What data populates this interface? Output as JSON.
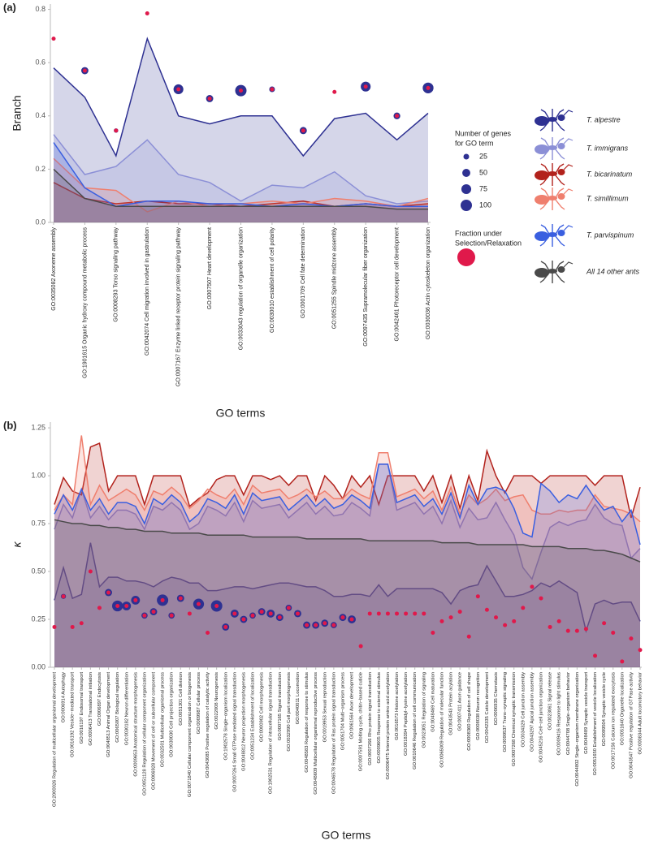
{
  "chart_data": [
    {
      "type": "line",
      "panel_label": "(a)",
      "ylabel": "Branch",
      "xlabel": "GO terms",
      "categories": [
        "GO:0035082 Axoneme assembly",
        "GO:1901615 Organic hydroxy compound metabolic process",
        "GO:0008293 Torso signaling pathway",
        "GO:0042074 Cell migration involved in gastrulation",
        "GO:0007167 Enzyme linked receptor protein signaling pathway",
        "GO:0007507 Heart development",
        "GO:0033043 regulation of organelle organization",
        "GO:0030010 establishment of cell polarity",
        "GO:0001709 Cell fate determination",
        "GO:0051255 Spindle midzone assembly",
        "GO:0097435 Supramolecular fiber organization",
        "GO:0042461 Photoreceptor cell development",
        "GO:0030036 Actin cytoskeleton organization"
      ],
      "ylim": [
        0,
        0.82
      ],
      "yticks": [
        {
          "value": 0,
          "label": "0.0"
        },
        0.2,
        0.4,
        0.6,
        0.8
      ],
      "series": [
        {
          "name": "T. alpestre",
          "color": "#2e3192",
          "values": [
            0.58,
            0.47,
            0.25,
            0.69,
            0.4,
            0.37,
            0.4,
            0.4,
            0.25,
            0.39,
            0.41,
            0.31,
            0.41
          ]
        },
        {
          "name": "T. immigrans",
          "color": "#8b8fd6",
          "values": [
            0.33,
            0.18,
            0.21,
            0.31,
            0.18,
            0.15,
            0.08,
            0.14,
            0.13,
            0.19,
            0.1,
            0.07,
            0.08
          ]
        },
        {
          "name": "T. bicarinatum",
          "color": "#b2221c",
          "values": [
            0.15,
            0.09,
            0.07,
            0.08,
            0.07,
            0.07,
            0.06,
            0.07,
            0.08,
            0.06,
            0.07,
            0.06,
            0.07
          ]
        },
        {
          "name": "T. simillimum",
          "color": "#ef7f6e",
          "values": [
            0.24,
            0.13,
            0.12,
            0.04,
            0.08,
            0.06,
            0.07,
            0.08,
            0.07,
            0.09,
            0.08,
            0.06,
            0.09
          ]
        },
        {
          "name": "T. parvispinum",
          "color": "#3a5fe0",
          "values": [
            0.3,
            0.13,
            0.06,
            0.08,
            0.08,
            0.07,
            0.07,
            0.06,
            0.07,
            0.06,
            0.07,
            0.06,
            0.06
          ]
        },
        {
          "name": "All 14 other ants",
          "color": "#4a4a4a",
          "values": [
            0.2,
            0.09,
            0.06,
            0.06,
            0.06,
            0.06,
            0.06,
            0.06,
            0.06,
            0.06,
            0.06,
            0.05,
            0.05
          ]
        }
      ],
      "dots": {
        "y": [
          0.69,
          0.57,
          0.345,
          0.785,
          0.5,
          0.465,
          0.495,
          0.5,
          0.345,
          0.49,
          0.51,
          0.4,
          0.505
        ],
        "genes": [
          10,
          40,
          15,
          10,
          75,
          40,
          100,
          25,
          40,
          5,
          75,
          35,
          90
        ],
        "color": "#2e3192",
        "center_color": "#e0194b"
      },
      "size_legend": {
        "title": [
          "Number of genes",
          "for GO term"
        ],
        "values": [
          25,
          50,
          75,
          100
        ]
      },
      "fraction_legend": {
        "title": [
          "Fraction under",
          "Selection/Relaxation"
        ]
      }
    },
    {
      "type": "line",
      "panel_label": "(b)",
      "ylabel": "κ",
      "xlabel": "GO terms",
      "categories": [
        "GO:2000026 Regulation of multicellular organismal development",
        "GO:0006914 Autophagy",
        "GO:0016192 Vesicle−mediated transport",
        "GO:0016197 Endosomal transport",
        "GO:0006413 Translational initiation",
        "GO:0006897 Endocytosis",
        "GO:0048513 Animal Organ development",
        "GO:0065007 Biological regulation",
        "GO:0030182 Neuron differentiation",
        "GO:0009653 Anatomical structure morphogenesis",
        "GO:0051128 Regulation of cellular component organization",
        "GO:0006928 Movement of cell or subcellular component",
        "GO:0032501 Multicellular organismal process",
        "GO:0030030 Cell projection organization",
        "GO:0051301 Cell division",
        "GO:0071840 Cellular component organization or biogenesis",
        "GO:0009987 Cellular process",
        "GO:0043085 Positive regulation of catalytic activity",
        "GO:0022008 Neurogenesis",
        "GO:1902578 Single−organism localization",
        "GO:0007264 Small GTPase mediated signal transduction",
        "GO:0048812 Neuron projection morphogenesis",
        "GO:0051234 Establishment of localization",
        "GO:0000902 Cell morphogenesis",
        "GO:1902531 Regulation of intracellular signal transduction",
        "GO:0007165 Signal transduction",
        "GO:0032990 Cell part morphogenesis",
        "GO:0040011 Locomotion",
        "GO:0048583 Regulation of response to stimulus",
        "GO:0048609 Multicellular organismal reproductive process",
        "GO:0019953 Sexual reproduction",
        "GO:0046578 Regulation of Ras protein signal transduction",
        "GO:0051704 Multi−organism process",
        "GO:0061564 Axon development",
        "GO:0007591 Molting cycle, chitin−based cuticle",
        "GO:0007266 Rho protein signal transduction",
        "GO:0009605 Response to external stimulus",
        "GO:0006475 Internal protein amino acid acetylation",
        "GO:0016573 Histone acetylation",
        "GO:0018394 Peptidyl−lysine acetylation",
        "GO:0010646 Regulation of cell communication",
        "GO:0023051 Regulation of signaling",
        "GO:0048469 Cell maturation",
        "GO:0065009 Regulation of molecular function",
        "GO:0043543 Protein acylation",
        "GO:0007411 Axon guidance",
        "GO:0008360 Regulation of cell shape",
        "GO:0008038 Neuron recognition",
        "GO:0042335 Cuticle development",
        "GO:0006935 Chemotaxis",
        "GO:0099537 Trans−synaptic signaling",
        "GO:0007268 Chemical synaptic transmission",
        "GO:0034329 Cell junction assembly",
        "GO:0043297 Apical junction assembly",
        "GO:0045216 Cell−cell junction organization",
        "GO:0023061 Signal release",
        "GO:0009416 Response to light stimulus",
        "GO:0044708 Single−organism behavior",
        "GO:0044802 Single−organism membrane organization",
        "GO:0048489 Synaptic vesicle transport",
        "GO:0051650 Establishment of vesicle localization",
        "GO:0099504 Synaptic vesicle cycle",
        "GO:0017156 Calcium ion regulated exocytosis",
        "GO:0051640 Organelle localization",
        "GO:0043547 Positive regulation of GTPase activity",
        "GO:0008344 Adult locomotory behavior"
      ],
      "ylim": [
        0,
        1.28
      ],
      "yticks": [
        {
          "value": 0,
          "label": "0.00"
        },
        0.25,
        {
          "value": 0.5,
          "label": "0.50"
        },
        0.75,
        {
          "value": 1,
          "label": "1.00"
        },
        1.25
      ],
      "series": [
        {
          "color": "#2e3192",
          "values": [
            0.35,
            0.52,
            0.36,
            0.38,
            0.65,
            0.42,
            0.47,
            0.47,
            0.45,
            0.45,
            0.44,
            0.42,
            0.45,
            0.47,
            0.46,
            0.44,
            0.44,
            0.4,
            0.4,
            0.41,
            0.42,
            0.42,
            0.41,
            0.42,
            0.43,
            0.44,
            0.44,
            0.43,
            0.42,
            0.42,
            0.4,
            0.37,
            0.37,
            0.38,
            0.38,
            0.37,
            0.43,
            0.37,
            0.41,
            0.41,
            0.41,
            0.41,
            0.41,
            0.39,
            0.33,
            0.4,
            0.42,
            0.43,
            0.53,
            0.45,
            0.37,
            0.37,
            0.38,
            0.4,
            0.44,
            0.42,
            0.45,
            0.42,
            0.39,
            0.19,
            0.33,
            0.35,
            0.33,
            0.34,
            0.34,
            0.24
          ]
        },
        {
          "color": "#8b8fd6",
          "values": [
            0.72,
            0.85,
            0.78,
            0.93,
            0.78,
            0.84,
            0.77,
            0.82,
            0.82,
            0.8,
            0.72,
            0.84,
            0.82,
            0.86,
            0.82,
            0.72,
            0.75,
            0.84,
            0.82,
            0.79,
            0.86,
            0.76,
            0.87,
            0.83,
            0.84,
            0.85,
            0.78,
            0.82,
            0.86,
            0.8,
            0.84,
            0.79,
            0.8,
            0.86,
            0.83,
            0.79,
            1.06,
            1.06,
            0.82,
            0.84,
            0.86,
            0.8,
            0.84,
            0.75,
            0.87,
            0.73,
            0.83,
            0.77,
            0.78,
            0.86,
            0.77,
            0.69,
            0.52,
            0.46,
            0.6,
            0.73,
            0.76,
            0.74,
            0.76,
            0.77,
            0.85,
            0.78,
            0.75,
            0.74,
            0.57,
            0.62
          ]
        },
        {
          "color": "#b2221c",
          "values": [
            0.85,
            0.99,
            0.92,
            0.9,
            1.15,
            1.17,
            0.92,
            1.0,
            1.0,
            1.0,
            0.85,
            1.0,
            1.0,
            1.0,
            1.0,
            0.84,
            0.88,
            0.91,
            0.98,
            1.0,
            1.0,
            0.9,
            1.0,
            1.0,
            0.98,
            1.0,
            0.95,
            1.0,
            1.0,
            0.87,
            1.0,
            0.95,
            0.88,
            1.0,
            0.94,
            1.0,
            0.85,
            1.0,
            1.0,
            1.0,
            1.0,
            0.92,
            1.0,
            0.86,
            1.0,
            0.83,
            1.0,
            0.87,
            1.13,
            1.0,
            0.91,
            1.0,
            1.0,
            1.0,
            0.96,
            1.0,
            1.0,
            1.0,
            1.0,
            1.0,
            0.95,
            1.0,
            1.0,
            1.0,
            0.78,
            0.94
          ]
        },
        {
          "color": "#ef7f6e",
          "values": [
            0.82,
            0.9,
            0.85,
            1.21,
            0.85,
            0.95,
            0.87,
            0.9,
            0.93,
            0.9,
            0.82,
            0.92,
            0.9,
            0.94,
            0.9,
            0.83,
            0.87,
            0.93,
            0.9,
            0.88,
            0.93,
            0.85,
            0.95,
            0.91,
            0.92,
            0.93,
            0.88,
            0.9,
            0.93,
            0.89,
            0.92,
            0.88,
            0.88,
            0.93,
            0.9,
            0.88,
            1.12,
            1.12,
            0.89,
            0.91,
            0.93,
            0.88,
            0.92,
            0.82,
            0.94,
            0.8,
            0.9,
            0.85,
            0.88,
            0.93,
            0.87,
            0.89,
            0.9,
            0.82,
            0.8,
            0.8,
            0.82,
            0.81,
            0.82,
            0.82,
            0.9,
            0.84,
            0.83,
            0.82,
            0.8,
            0.76
          ]
        },
        {
          "color": "#3a5fe0",
          "values": [
            0.8,
            0.9,
            0.82,
            0.93,
            0.82,
            0.88,
            0.8,
            0.86,
            0.86,
            0.84,
            0.75,
            0.88,
            0.85,
            0.9,
            0.86,
            0.76,
            0.8,
            0.88,
            0.86,
            0.83,
            0.9,
            0.8,
            0.91,
            0.87,
            0.88,
            0.89,
            0.82,
            0.86,
            0.9,
            0.84,
            0.88,
            0.83,
            0.85,
            0.9,
            0.87,
            0.83,
            1.06,
            1.06,
            0.86,
            0.88,
            0.9,
            0.84,
            0.88,
            0.8,
            0.91,
            0.78,
            0.95,
            0.85,
            0.93,
            0.94,
            0.92,
            0.83,
            0.7,
            0.68,
            0.96,
            0.92,
            0.86,
            0.9,
            0.88,
            0.95,
            0.88,
            0.82,
            0.84,
            0.76,
            0.82,
            0.64
          ]
        },
        {
          "color": "#4a4a4a",
          "values": [
            0.77,
            0.76,
            0.75,
            0.75,
            0.74,
            0.74,
            0.73,
            0.73,
            0.72,
            0.72,
            0.71,
            0.71,
            0.71,
            0.7,
            0.7,
            0.7,
            0.7,
            0.69,
            0.69,
            0.69,
            0.69,
            0.69,
            0.68,
            0.68,
            0.68,
            0.68,
            0.68,
            0.68,
            0.67,
            0.67,
            0.67,
            0.67,
            0.67,
            0.67,
            0.67,
            0.66,
            0.66,
            0.66,
            0.66,
            0.66,
            0.66,
            0.66,
            0.66,
            0.65,
            0.65,
            0.65,
            0.65,
            0.64,
            0.64,
            0.64,
            0.64,
            0.64,
            0.64,
            0.63,
            0.63,
            0.63,
            0.63,
            0.62,
            0.62,
            0.62,
            0.61,
            0.61,
            0.6,
            0.59,
            0.57,
            0.55
          ]
        }
      ],
      "dots": {
        "y": [
          0.21,
          0.37,
          0.21,
          0.23,
          0.5,
          0.31,
          0.39,
          0.32,
          0.32,
          0.35,
          0.27,
          0.29,
          0.35,
          0.27,
          0.36,
          0.28,
          0.33,
          0.18,
          0.32,
          0.21,
          0.28,
          0.25,
          0.27,
          0.29,
          0.28,
          0.26,
          0.31,
          0.28,
          0.22,
          0.22,
          0.23,
          0.22,
          0.26,
          0.25,
          0.11,
          0.28,
          0.28,
          0.28,
          0.28,
          0.28,
          0.28,
          0.28,
          0.18,
          0.24,
          0.26,
          0.29,
          0.16,
          0.37,
          0.3,
          0.26,
          0.22,
          0.24,
          0.31,
          0.42,
          0.36,
          0.21,
          0.24,
          0.19,
          0.19,
          0.2,
          0.06,
          0.23,
          0.18,
          0.03,
          0.15,
          0.09
        ],
        "genes": [
          5,
          20,
          5,
          5,
          5,
          10,
          40,
          90,
          60,
          60,
          30,
          40,
          100,
          30,
          40,
          10,
          90,
          5,
          100,
          40,
          50,
          40,
          30,
          40,
          50,
          40,
          30,
          40,
          40,
          40,
          40,
          30,
          40,
          50,
          5,
          5,
          5,
          5,
          5,
          5,
          5,
          5,
          5,
          5,
          5,
          5,
          5,
          5,
          5,
          5,
          5,
          5,
          5,
          5,
          5,
          5,
          5,
          5,
          5,
          5,
          5,
          5,
          5,
          5,
          5,
          5
        ],
        "color": "#2e3192",
        "center_color": "#e0194b"
      }
    }
  ]
}
